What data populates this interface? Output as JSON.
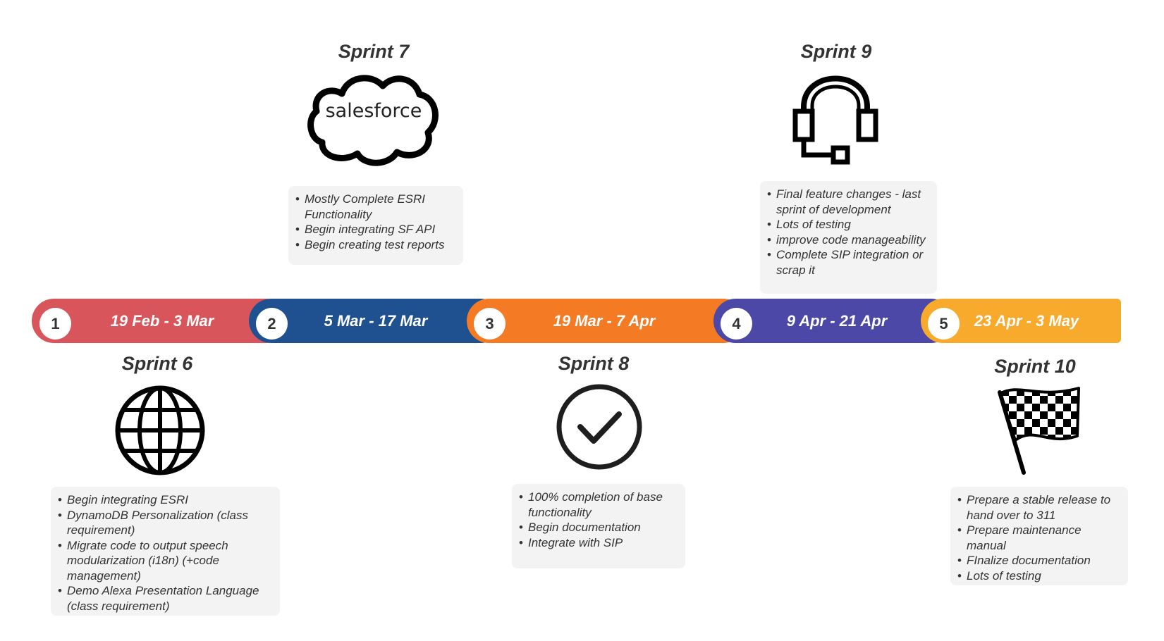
{
  "colors": {
    "sprint1": "#d8555b",
    "sprint2": "#1f5190",
    "sprint3": "#f57a24",
    "sprint4": "#4c48a8",
    "sprint5": "#f7aa2b",
    "note_bg": "#f3f3f3",
    "text": "#333333"
  },
  "timeline": [
    {
      "number": "1",
      "dates": "19 Feb - 3 Mar"
    },
    {
      "number": "2",
      "dates": "5 Mar - 17 Mar"
    },
    {
      "number": "3",
      "dates": "19 Mar - 7 Apr"
    },
    {
      "number": "4",
      "dates": "9 Apr - 21 Apr"
    },
    {
      "number": "5",
      "dates": "23 Apr - 3 May"
    }
  ],
  "sprints": {
    "s6": {
      "title": "Sprint 6",
      "icon": "globe-icon",
      "items": [
        "Begin integrating ESRI",
        "DynamoDB Personalization (class requirement)",
        "Migrate code to output speech modularization (i18n) (+code management)",
        "Demo Alexa Presentation Language (class requirement)"
      ]
    },
    "s7": {
      "title": "Sprint 7",
      "icon": "salesforce-logo",
      "logo_text": "salesforce",
      "items": [
        "Mostly Complete ESRI Functionality",
        "Begin integrating SF API",
        "Begin creating test reports"
      ]
    },
    "s8": {
      "title": "Sprint 8",
      "icon": "checkmark-circle-icon",
      "items": [
        "100% completion of base functionality",
        "Begin documentation",
        "Integrate with SIP"
      ]
    },
    "s9": {
      "title": "Sprint 9",
      "icon": "headset-icon",
      "items": [
        "Final feature changes - last sprint of development",
        "Lots of testing",
        "improve code manageability",
        "Complete SIP integration or scrap it"
      ]
    },
    "s10": {
      "title": "Sprint 10",
      "icon": "checkered-flag-icon",
      "items": [
        "Prepare a stable release to hand over to 311",
        "Prepare maintenance manual",
        "FInalize documentation",
        "Lots of testing"
      ]
    }
  }
}
